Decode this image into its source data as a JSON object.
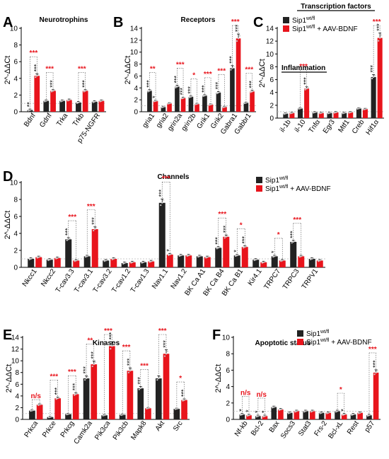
{
  "colors": {
    "sip1": "#222222",
    "bdnf": "#e8141c",
    "sig": "#e8141c",
    "axis": "#000000"
  },
  "legend": {
    "sip1_base": "Sip1",
    "sip1_sup": "wt/fl",
    "bdnf_base": "Sip1",
    "bdnf_sup": "wt/fl",
    "bdnf_suffix": " + AAV-BDNF"
  },
  "chart_data": [
    {
      "panel": "A",
      "type": "bar",
      "title": "Neurotrophins",
      "ylabel": "2^-ΔΔCt",
      "ylim": [
        0,
        10
      ],
      "yticks": [
        0,
        2,
        4,
        6,
        8,
        10
      ],
      "categories": [
        "Bdnf",
        "Gdnf",
        "Trka",
        "Trkb",
        "p75-NGFR"
      ],
      "series": [
        {
          "key": "sip1",
          "values": [
            0.2,
            1.3,
            1.3,
            1.1,
            1.2
          ],
          "stars": [
            "**",
            "",
            "",
            "",
            ""
          ]
        },
        {
          "key": "bdnf",
          "values": [
            4.3,
            2.5,
            1.4,
            2.5,
            1.3
          ],
          "stars": [
            "***",
            "***",
            "",
            "***",
            ""
          ]
        }
      ],
      "compare": [
        "***",
        "***",
        "",
        "***",
        ""
      ]
    },
    {
      "panel": "B",
      "type": "bar",
      "title": "Receptors",
      "ylabel": "2^-ΔΔCt",
      "ylim": [
        0,
        14
      ],
      "yticks": [
        0,
        2,
        4,
        6,
        8,
        10,
        12,
        14
      ],
      "categories": [
        "gria1",
        "gria2",
        "grin2a",
        "grin2b",
        "Grik1",
        "Grik2",
        "Gabra1",
        "Gabbr1"
      ],
      "series": [
        {
          "key": "sip1",
          "values": [
            3.5,
            0.8,
            4.2,
            2.5,
            2.7,
            3.2,
            7.3,
            1.5
          ],
          "stars": [
            "***",
            "",
            "***",
            "***",
            "***",
            "***",
            "***",
            ""
          ]
        },
        {
          "key": "bdnf",
          "values": [
            1.8,
            1.4,
            2.3,
            1.3,
            1.2,
            0.8,
            12.3,
            3.4
          ],
          "stars": [
            "*",
            "",
            "***",
            "",
            "",
            "",
            "***",
            "***"
          ]
        }
      ],
      "compare": [
        "**",
        "",
        "***",
        "*",
        "***",
        "***",
        "***",
        "***"
      ]
    },
    {
      "panel": "C",
      "type": "bar",
      "title": "Transcription factors",
      "ylabel": "2^-ΔΔCt",
      "ylim": [
        0,
        14
      ],
      "yticks": [
        0,
        2,
        4,
        6,
        8,
        10,
        12,
        14
      ],
      "inset_label": "Inflammation",
      "categories": [
        "il-1b",
        "il-10",
        "Tnfα",
        "Egr3",
        "Mtf1",
        "Creb",
        "Hif1α"
      ],
      "series": [
        {
          "key": "sip1",
          "values": [
            0.7,
            1.5,
            0.9,
            0.8,
            0.8,
            1.5,
            6.4
          ],
          "stars": [
            "",
            "",
            "",
            "",
            "",
            "",
            "***"
          ]
        },
        {
          "key": "bdnf",
          "values": [
            0.8,
            4.6,
            0.8,
            0.9,
            0.9,
            1.4,
            12.5
          ],
          "stars": [
            "",
            "***",
            "",
            "",
            "",
            "",
            "***"
          ]
        }
      ],
      "compare": [
        "",
        "***",
        "",
        "",
        "",
        "",
        "***"
      ]
    },
    {
      "panel": "D",
      "type": "bar",
      "title": "Channels",
      "ylabel": "2^-ΔΔCt",
      "ylim": [
        0,
        10
      ],
      "yticks": [
        0,
        2,
        4,
        6,
        8,
        10
      ],
      "categories": [
        "Nkcc1",
        "Nkcc2",
        "T-cav3.3",
        "T-cav3.1",
        "T-cav3.2",
        "T-cav1.2",
        "T-cav1.3",
        "Nav1.1",
        "Nav1.2",
        "BK Ca A1",
        "BK Ca B4",
        "BK Ca B1",
        "Kir4.1",
        "TRPC7",
        "TRPC3",
        "TRPV1"
      ],
      "series": [
        {
          "key": "sip1",
          "values": [
            1.0,
            0.9,
            3.3,
            1.3,
            0.8,
            0.5,
            0.6,
            7.6,
            1.4,
            1.3,
            2.3,
            1.4,
            0.9,
            1.3,
            3.0,
            1.0
          ],
          "stars": [
            "",
            "",
            "***",
            "",
            "",
            "",
            "",
            "***",
            "",
            "",
            "***",
            "*",
            "",
            "*",
            "***",
            ""
          ]
        },
        {
          "key": "bdnf",
          "values": [
            1.2,
            1.1,
            0.8,
            4.5,
            1.0,
            0.6,
            0.7,
            1.5,
            1.4,
            1.2,
            3.6,
            2.4,
            0.6,
            0.8,
            1.3,
            0.8
          ],
          "stars": [
            "",
            "",
            "",
            "***",
            "",
            "",
            "",
            "*",
            "",
            "",
            "***",
            "***",
            "",
            "",
            "",
            ""
          ]
        }
      ],
      "compare": [
        "",
        "",
        "***",
        "***",
        "",
        "",
        "",
        "***",
        "",
        "",
        "***",
        "*",
        "",
        "*",
        "***",
        ""
      ]
    },
    {
      "panel": "E",
      "type": "bar",
      "title": "Kinases",
      "ylabel": "2^-ΔΔCt",
      "ylim": [
        0,
        14
      ],
      "yticks": [
        0,
        2,
        4,
        6,
        8,
        10,
        12,
        14
      ],
      "categories": [
        "Prkca",
        "Prkce",
        "Prkcg",
        "Camk2a",
        "Pik3ca",
        "Pik3cb",
        "Mapk8",
        "Akt",
        "Src"
      ],
      "series": [
        {
          "key": "sip1",
          "values": [
            1.5,
            0.4,
            0.9,
            7.0,
            0.7,
            0.8,
            5.3,
            7.0,
            1.8
          ],
          "stars": [
            "",
            "",
            "",
            "***",
            "",
            "",
            "***",
            "",
            ""
          ]
        },
        {
          "key": "bdnf",
          "values": [
            2.5,
            3.6,
            4.3,
            9.4,
            12.5,
            8.3,
            1.9,
            11.2,
            3.3
          ],
          "stars": [
            "",
            "***",
            "***",
            "***",
            "***",
            "***",
            "",
            "***",
            "***"
          ]
        }
      ],
      "compare": [
        "n/s",
        "***",
        "***",
        "**",
        "***",
        "***",
        "***",
        "***",
        "*"
      ]
    },
    {
      "panel": "F",
      "type": "bar",
      "title": "Apoptotic status",
      "ylabel": "2^-ΔΔCt",
      "ylim": [
        0,
        10
      ],
      "yticks": [
        0,
        2,
        4,
        6,
        8,
        10
      ],
      "categories": [
        "Nf-kb",
        "Bcl-2",
        "Bax",
        "Socs3",
        "Stat3",
        "Frs-2",
        "Bcl-xL",
        "Rest",
        "p57"
      ],
      "series": [
        {
          "key": "sip1",
          "values": [
            0.6,
            0.4,
            1.5,
            0.8,
            1.0,
            0.8,
            1.0,
            0.6,
            0.5
          ],
          "stars": [
            "*",
            "*",
            "",
            "",
            "",
            "",
            "",
            "",
            ""
          ]
        },
        {
          "key": "bdnf",
          "values": [
            0.5,
            0.4,
            1.2,
            1.0,
            1.0,
            0.8,
            0.6,
            0.8,
            5.7
          ],
          "stars": [
            "*",
            "*",
            "",
            "",
            "",
            "",
            "*",
            "",
            "***"
          ]
        }
      ],
      "compare": [
        "n/s",
        "n/s",
        "",
        "",
        "",
        "",
        "*",
        "",
        "***"
      ]
    }
  ]
}
